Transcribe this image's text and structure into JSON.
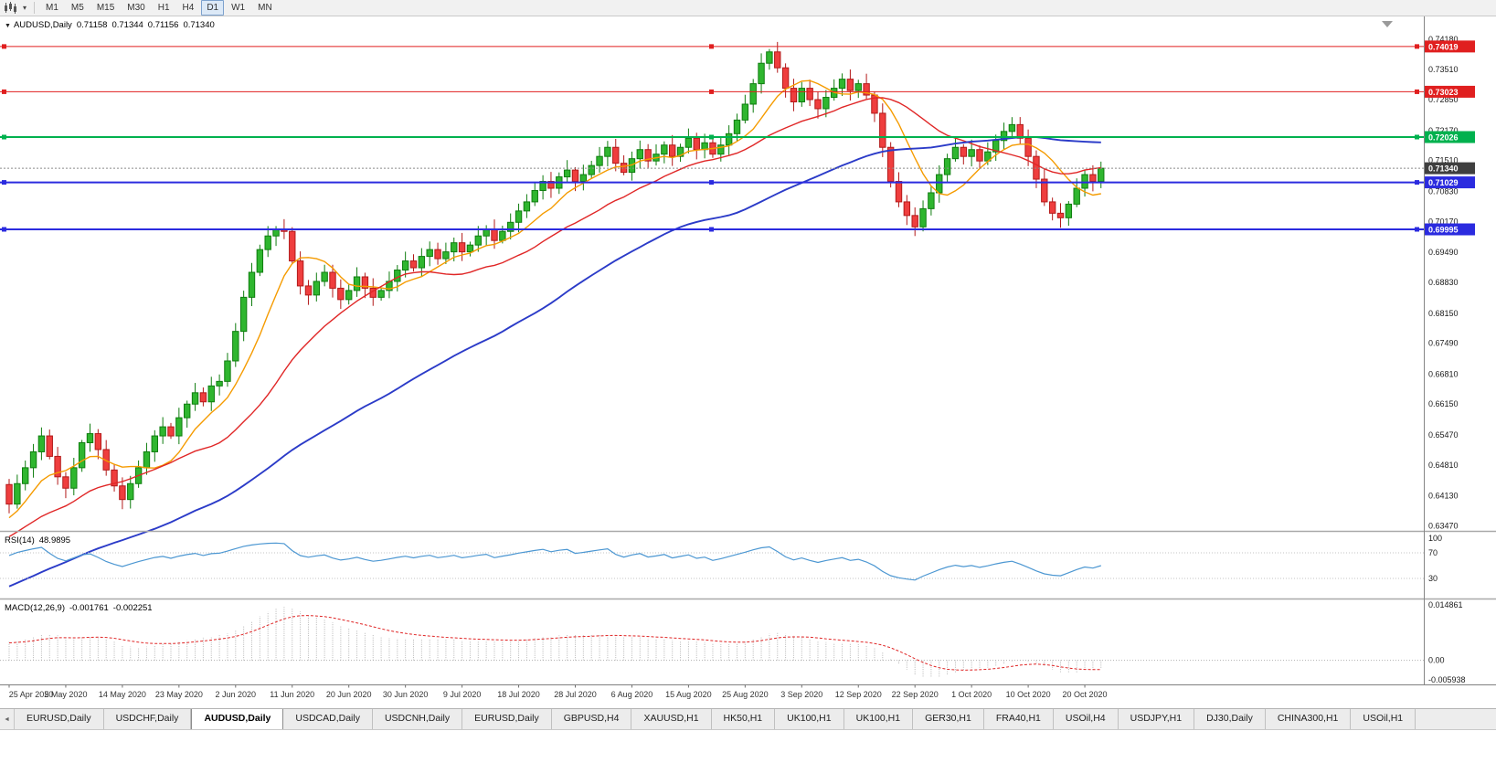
{
  "toolbar": {
    "timeframes": [
      "M1",
      "M5",
      "M15",
      "M30",
      "H1",
      "H4",
      "D1",
      "W1",
      "MN"
    ],
    "active_timeframe": "D1"
  },
  "chart": {
    "title": {
      "symbol": "AUDUSD,Daily",
      "open": "0.71158",
      "high": "0.71344",
      "low": "0.71156",
      "close": "0.71340"
    }
  },
  "chart_data": {
    "type": "candlestick",
    "symbol": "AUDUSD",
    "timeframe": "Daily",
    "x_labels": [
      "25 Apr 2020",
      "5 May 2020",
      "14 May 2020",
      "23 May 2020",
      "2 Jun 2020",
      "11 Jun 2020",
      "20 Jun 2020",
      "30 Jun 2020",
      "9 Jul 2020",
      "18 Jul 2020",
      "28 Jul 2020",
      "6 Aug 2020",
      "15 Aug 2020",
      "25 Aug 2020",
      "3 Sep 2020",
      "12 Sep 2020",
      "22 Sep 2020",
      "1 Oct 2020",
      "10 Oct 2020",
      "20 Oct 2020"
    ],
    "candles_per_label": 7,
    "closes": [
      0.6395,
      0.644,
      0.6475,
      0.651,
      0.6545,
      0.65,
      0.6455,
      0.643,
      0.6475,
      0.653,
      0.655,
      0.6515,
      0.647,
      0.6435,
      0.6405,
      0.644,
      0.6475,
      0.651,
      0.6545,
      0.6565,
      0.6545,
      0.6585,
      0.6615,
      0.664,
      0.662,
      0.6655,
      0.6665,
      0.671,
      0.6775,
      0.685,
      0.6905,
      0.6955,
      0.6985,
      0.7,
      0.6995,
      0.693,
      0.6875,
      0.6855,
      0.6885,
      0.6905,
      0.687,
      0.6845,
      0.6865,
      0.6895,
      0.687,
      0.685,
      0.6865,
      0.6885,
      0.691,
      0.693,
      0.6915,
      0.694,
      0.6955,
      0.6935,
      0.695,
      0.697,
      0.695,
      0.6965,
      0.6985,
      0.7,
      0.6975,
      0.6995,
      0.7015,
      0.704,
      0.706,
      0.7085,
      0.7105,
      0.709,
      0.7115,
      0.713,
      0.7105,
      0.712,
      0.714,
      0.716,
      0.718,
      0.7145,
      0.7125,
      0.7155,
      0.7175,
      0.715,
      0.7165,
      0.7185,
      0.716,
      0.718,
      0.72,
      0.7175,
      0.719,
      0.7165,
      0.7185,
      0.721,
      0.724,
      0.7275,
      0.732,
      0.7365,
      0.739,
      0.7355,
      0.731,
      0.728,
      0.731,
      0.7285,
      0.7265,
      0.729,
      0.731,
      0.733,
      0.7305,
      0.732,
      0.7295,
      0.7255,
      0.718,
      0.7105,
      0.706,
      0.703,
      0.7005,
      0.7045,
      0.708,
      0.712,
      0.7155,
      0.718,
      0.716,
      0.7175,
      0.715,
      0.717,
      0.7195,
      0.7215,
      0.723,
      0.72,
      0.716,
      0.711,
      0.706,
      0.7035,
      0.7025,
      0.7055,
      0.709,
      0.712,
      0.7105,
      0.7134
    ],
    "price_axis_labels": [
      "0.74180",
      "0.73510",
      "0.72850",
      "0.72170",
      "0.71510",
      "0.70830",
      "0.70170",
      "0.69490",
      "0.68830",
      "0.68150",
      "0.67490",
      "0.66810",
      "0.66150",
      "0.65470",
      "0.64810",
      "0.64130",
      "0.63470"
    ],
    "levels": [
      {
        "value": 0.74019,
        "label": "0.74019",
        "color": "#E01F1F",
        "width": 1
      },
      {
        "value": 0.73023,
        "label": "0.73023",
        "color": "#E01F1F",
        "width": 1
      },
      {
        "value": 0.72026,
        "label": "0.72026",
        "color": "#00B14E",
        "width": 2
      },
      {
        "value": 0.71029,
        "label": "0.71029",
        "color": "#2B2BDF",
        "width": 2
      },
      {
        "value": 0.69995,
        "label": "0.69995",
        "color": "#2B2BDF",
        "width": 2
      }
    ],
    "current_price": {
      "value": 0.7134,
      "label": "0.71340",
      "tag_color": "#3F3F3F"
    },
    "moving_averages": [
      {
        "name": "fast",
        "period": 8,
        "color": "#F59B00",
        "width": 1.4
      },
      {
        "name": "medium",
        "period": 21,
        "color": "#E02626",
        "width": 1.4
      },
      {
        "name": "slow",
        "period": 55,
        "color": "#2B3BC8",
        "width": 1.9
      }
    ],
    "candle_colors": {
      "up_fill": "#2FB62F",
      "up_stroke": "#0F7D0F",
      "down_fill": "#EF3E3E",
      "down_stroke": "#B31A1A"
    },
    "rsi": {
      "label": "RSI(14)",
      "value_text": "48.9895",
      "period": 14,
      "levels": [
        70,
        30
      ],
      "axis_labels": [
        "100",
        "70",
        "30"
      ],
      "color": "#4C97D2"
    },
    "macd": {
      "label": "MACD(12,26,9)",
      "value1": "-0.001761",
      "value2": "-0.002251",
      "fast": 12,
      "slow": 26,
      "signal": 9,
      "axis_top": "0.014861",
      "axis_zero": "0.00",
      "axis_bottom": "-0.005938",
      "hist_color": "#B5B5B5",
      "signal_color": "#E02626"
    }
  },
  "tabs": {
    "active_index": 2,
    "items": [
      "EURUSD,Daily",
      "USDCHF,Daily",
      "AUDUSD,Daily",
      "USDCAD,Daily",
      "USDCNH,Daily",
      "EURUSD,Daily",
      "GBPUSD,H4",
      "XAUUSD,H1",
      "HK50,H1",
      "UK100,H1",
      "UK100,H1",
      "GER30,H1",
      "FRA40,H1",
      "USOil,H4",
      "USDJPY,H1",
      "DJ30,Daily",
      "CHINA300,H1",
      "USOil,H1"
    ]
  }
}
